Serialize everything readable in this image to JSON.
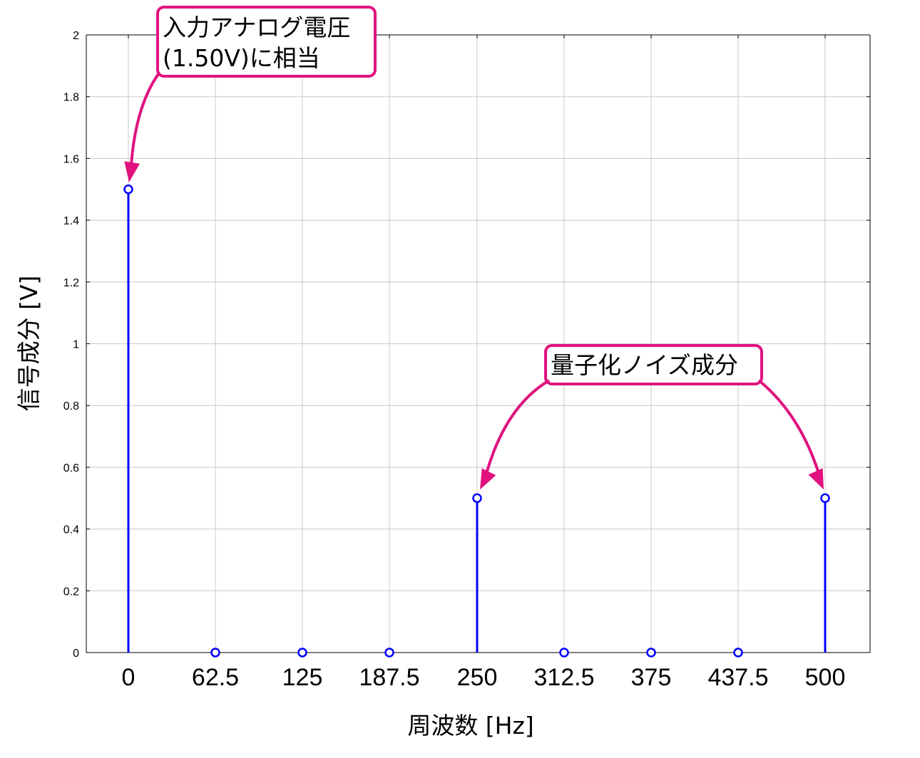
{
  "chart_data": {
    "type": "stem",
    "title": "",
    "xlabel": "周波数 [Hz]",
    "ylabel": "信号成分 [V]",
    "x": [
      0,
      62.5,
      125,
      187.5,
      250,
      312.5,
      375,
      437.5,
      500
    ],
    "x_tick_labels": [
      "0",
      "62.5",
      "125",
      "187.5",
      "250",
      "312.5",
      "375",
      "437.5",
      "500"
    ],
    "y": [
      1.5,
      0,
      0,
      0,
      0.5,
      0,
      0,
      0,
      0.5
    ],
    "ylim": [
      0,
      2
    ],
    "y_ticks": [
      0,
      0.2,
      0.4,
      0.6,
      0.8,
      1,
      1.2,
      1.4,
      1.6,
      1.8,
      2
    ],
    "y_tick_labels": [
      "0",
      "0.2",
      "0.4",
      "0.6",
      "0.8",
      "1",
      "1.2",
      "1.4",
      "1.6",
      "1.8",
      "2"
    ],
    "grid": true,
    "series_color": "#0000ff",
    "annotations": [
      {
        "lines": [
          "入力アナログ電圧",
          "(1.50V)に相当"
        ],
        "targets": [
          0
        ]
      },
      {
        "lines": [
          "量子化ノイズ成分"
        ],
        "targets": [
          250,
          500
        ]
      }
    ],
    "annotation_color": "#e0127f"
  }
}
